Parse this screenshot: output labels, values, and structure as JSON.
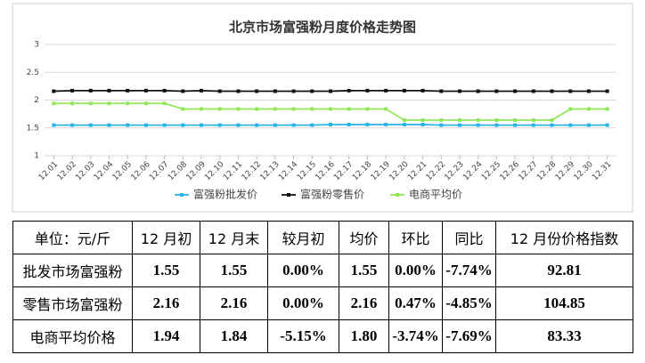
{
  "chart_data": {
    "type": "line",
    "title": "北京市场富强粉月度价格走势图",
    "categories": [
      "12.01",
      "12.02",
      "12.03",
      "12.04",
      "12.05",
      "12.06",
      "12.07",
      "12.08",
      "12.09",
      "12.10",
      "12.11",
      "12.12",
      "12.13",
      "12.14",
      "12.15",
      "12.16",
      "12.17",
      "12.18",
      "12.19",
      "12.20",
      "12.21",
      "12.22",
      "12.23",
      "12.24",
      "12.25",
      "12.26",
      "12.27",
      "12.28",
      "12.29",
      "12.30",
      "12.31"
    ],
    "series": [
      {
        "name": "富强粉批发价",
        "color": "#2ab4e6",
        "values": [
          1.55,
          1.55,
          1.55,
          1.55,
          1.55,
          1.55,
          1.55,
          1.55,
          1.55,
          1.55,
          1.55,
          1.55,
          1.55,
          1.55,
          1.55,
          1.56,
          1.56,
          1.56,
          1.56,
          1.56,
          1.56,
          1.55,
          1.55,
          1.55,
          1.55,
          1.55,
          1.55,
          1.55,
          1.55,
          1.55,
          1.55
        ]
      },
      {
        "name": "富强粉零售价",
        "color": "#111111",
        "values": [
          2.16,
          2.17,
          2.17,
          2.17,
          2.17,
          2.17,
          2.17,
          2.16,
          2.17,
          2.16,
          2.16,
          2.16,
          2.16,
          2.16,
          2.16,
          2.16,
          2.17,
          2.17,
          2.17,
          2.17,
          2.17,
          2.16,
          2.16,
          2.16,
          2.16,
          2.16,
          2.16,
          2.16,
          2.16,
          2.16,
          2.16
        ]
      },
      {
        "name": "电商平均价",
        "color": "#92e65a",
        "values": [
          1.94,
          1.94,
          1.94,
          1.94,
          1.94,
          1.94,
          1.94,
          1.84,
          1.84,
          1.84,
          1.84,
          1.84,
          1.84,
          1.84,
          1.84,
          1.84,
          1.84,
          1.84,
          1.84,
          1.64,
          1.64,
          1.64,
          1.64,
          1.64,
          1.64,
          1.64,
          1.64,
          1.64,
          1.84,
          1.84,
          1.84
        ]
      }
    ],
    "ylim": [
      1,
      3
    ],
    "yticks": [
      1,
      1.5,
      2,
      2.5,
      3
    ],
    "grid": true
  },
  "table": {
    "header": [
      "单位：元/斤",
      "12 月初",
      "12 月末",
      "较月初",
      "均价",
      "环比",
      "同比",
      "12 月份价格指数"
    ],
    "rows": [
      [
        "批发市场富强粉",
        "1.55",
        "1.55",
        "0.00%",
        "1.55",
        "0.00%",
        "-7.74%",
        "92.81"
      ],
      [
        "零售市场富强粉",
        "2.16",
        "2.16",
        "0.00%",
        "2.16",
        "0.47%",
        "-4.85%",
        "104.85"
      ],
      [
        "电商平均价格",
        "1.94",
        "1.84",
        "-5.15%",
        "1.80",
        "-3.74%",
        "-7.69%",
        "83.33"
      ]
    ]
  }
}
